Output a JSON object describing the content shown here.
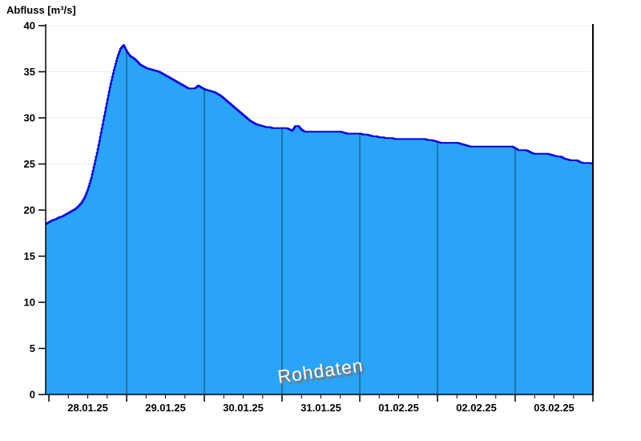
{
  "title": "Abfluss [m³/s]",
  "watermark": "Rohdaten",
  "colors": {
    "fill": "#29A4F6",
    "stroke": "#0000E6",
    "day_line": "#1E6FA4",
    "axis": "#000000",
    "grid": "#ECECEC",
    "background": "#FFFFFF",
    "watermark_text": "#FFFFFF"
  },
  "chart_data": {
    "type": "area",
    "title": "Abfluss [m³/s]",
    "ylabel": "Abfluss [m³/s]",
    "xlabel": "",
    "ylim": [
      0,
      40
    ],
    "y_ticks": [
      0,
      5,
      10,
      15,
      20,
      25,
      30,
      35,
      40
    ],
    "x_tick_labels": [
      "28.01.25",
      "29.01.25",
      "30.01.25",
      "31.01.25",
      "01.02.25",
      "02.02.25",
      "03.02.25"
    ],
    "x_range_hours": [
      -1,
      168
    ],
    "hours_per_day": 24,
    "minor_tick_hours": 6,
    "grid": "horizontal-light",
    "legend": "none",
    "annotations": [
      "Rohdaten"
    ],
    "series": [
      {
        "name": "Abfluss",
        "unit": "m³/s",
        "start_hour": -1,
        "step_hours": 1,
        "interpolation": "step",
        "values": [
          18.5,
          18.7,
          18.9,
          19.0,
          19.2,
          19.3,
          19.5,
          19.7,
          19.9,
          20.1,
          20.4,
          20.8,
          21.4,
          22.3,
          23.5,
          25.0,
          26.6,
          28.4,
          30.2,
          32.0,
          33.7,
          35.2,
          36.5,
          37.5,
          37.9,
          37.2,
          36.7,
          36.5,
          36.2,
          35.8,
          35.6,
          35.4,
          35.3,
          35.2,
          35.1,
          35.0,
          34.8,
          34.6,
          34.4,
          34.2,
          34.0,
          33.8,
          33.6,
          33.4,
          33.2,
          33.2,
          33.2,
          33.5,
          33.3,
          33.1,
          33.0,
          32.9,
          32.8,
          32.6,
          32.4,
          32.1,
          31.8,
          31.5,
          31.2,
          30.9,
          30.6,
          30.3,
          30.0,
          29.7,
          29.5,
          29.3,
          29.2,
          29.1,
          29.0,
          29.0,
          28.9,
          28.9,
          28.9,
          28.9,
          28.9,
          28.8,
          28.6,
          29.1,
          29.1,
          28.7,
          28.5,
          28.5,
          28.5,
          28.5,
          28.5,
          28.5,
          28.5,
          28.5,
          28.5,
          28.5,
          28.5,
          28.5,
          28.4,
          28.3,
          28.3,
          28.3,
          28.3,
          28.3,
          28.2,
          28.2,
          28.1,
          28.0,
          28.0,
          27.9,
          27.9,
          27.8,
          27.8,
          27.8,
          27.7,
          27.7,
          27.7,
          27.7,
          27.7,
          27.7,
          27.7,
          27.7,
          27.7,
          27.7,
          27.6,
          27.6,
          27.5,
          27.4,
          27.3,
          27.3,
          27.3,
          27.3,
          27.3,
          27.3,
          27.2,
          27.1,
          27.0,
          26.9,
          26.9,
          26.9,
          26.9,
          26.9,
          26.9,
          26.9,
          26.9,
          26.9,
          26.9,
          26.9,
          26.9,
          26.9,
          26.9,
          26.7,
          26.5,
          26.5,
          26.5,
          26.4,
          26.2,
          26.1,
          26.1,
          26.1,
          26.1,
          26.1,
          26.0,
          25.9,
          25.8,
          25.8,
          25.6,
          25.5,
          25.4,
          25.4,
          25.4,
          25.2,
          25.1,
          25.1,
          25.1,
          25.0
        ]
      }
    ]
  }
}
